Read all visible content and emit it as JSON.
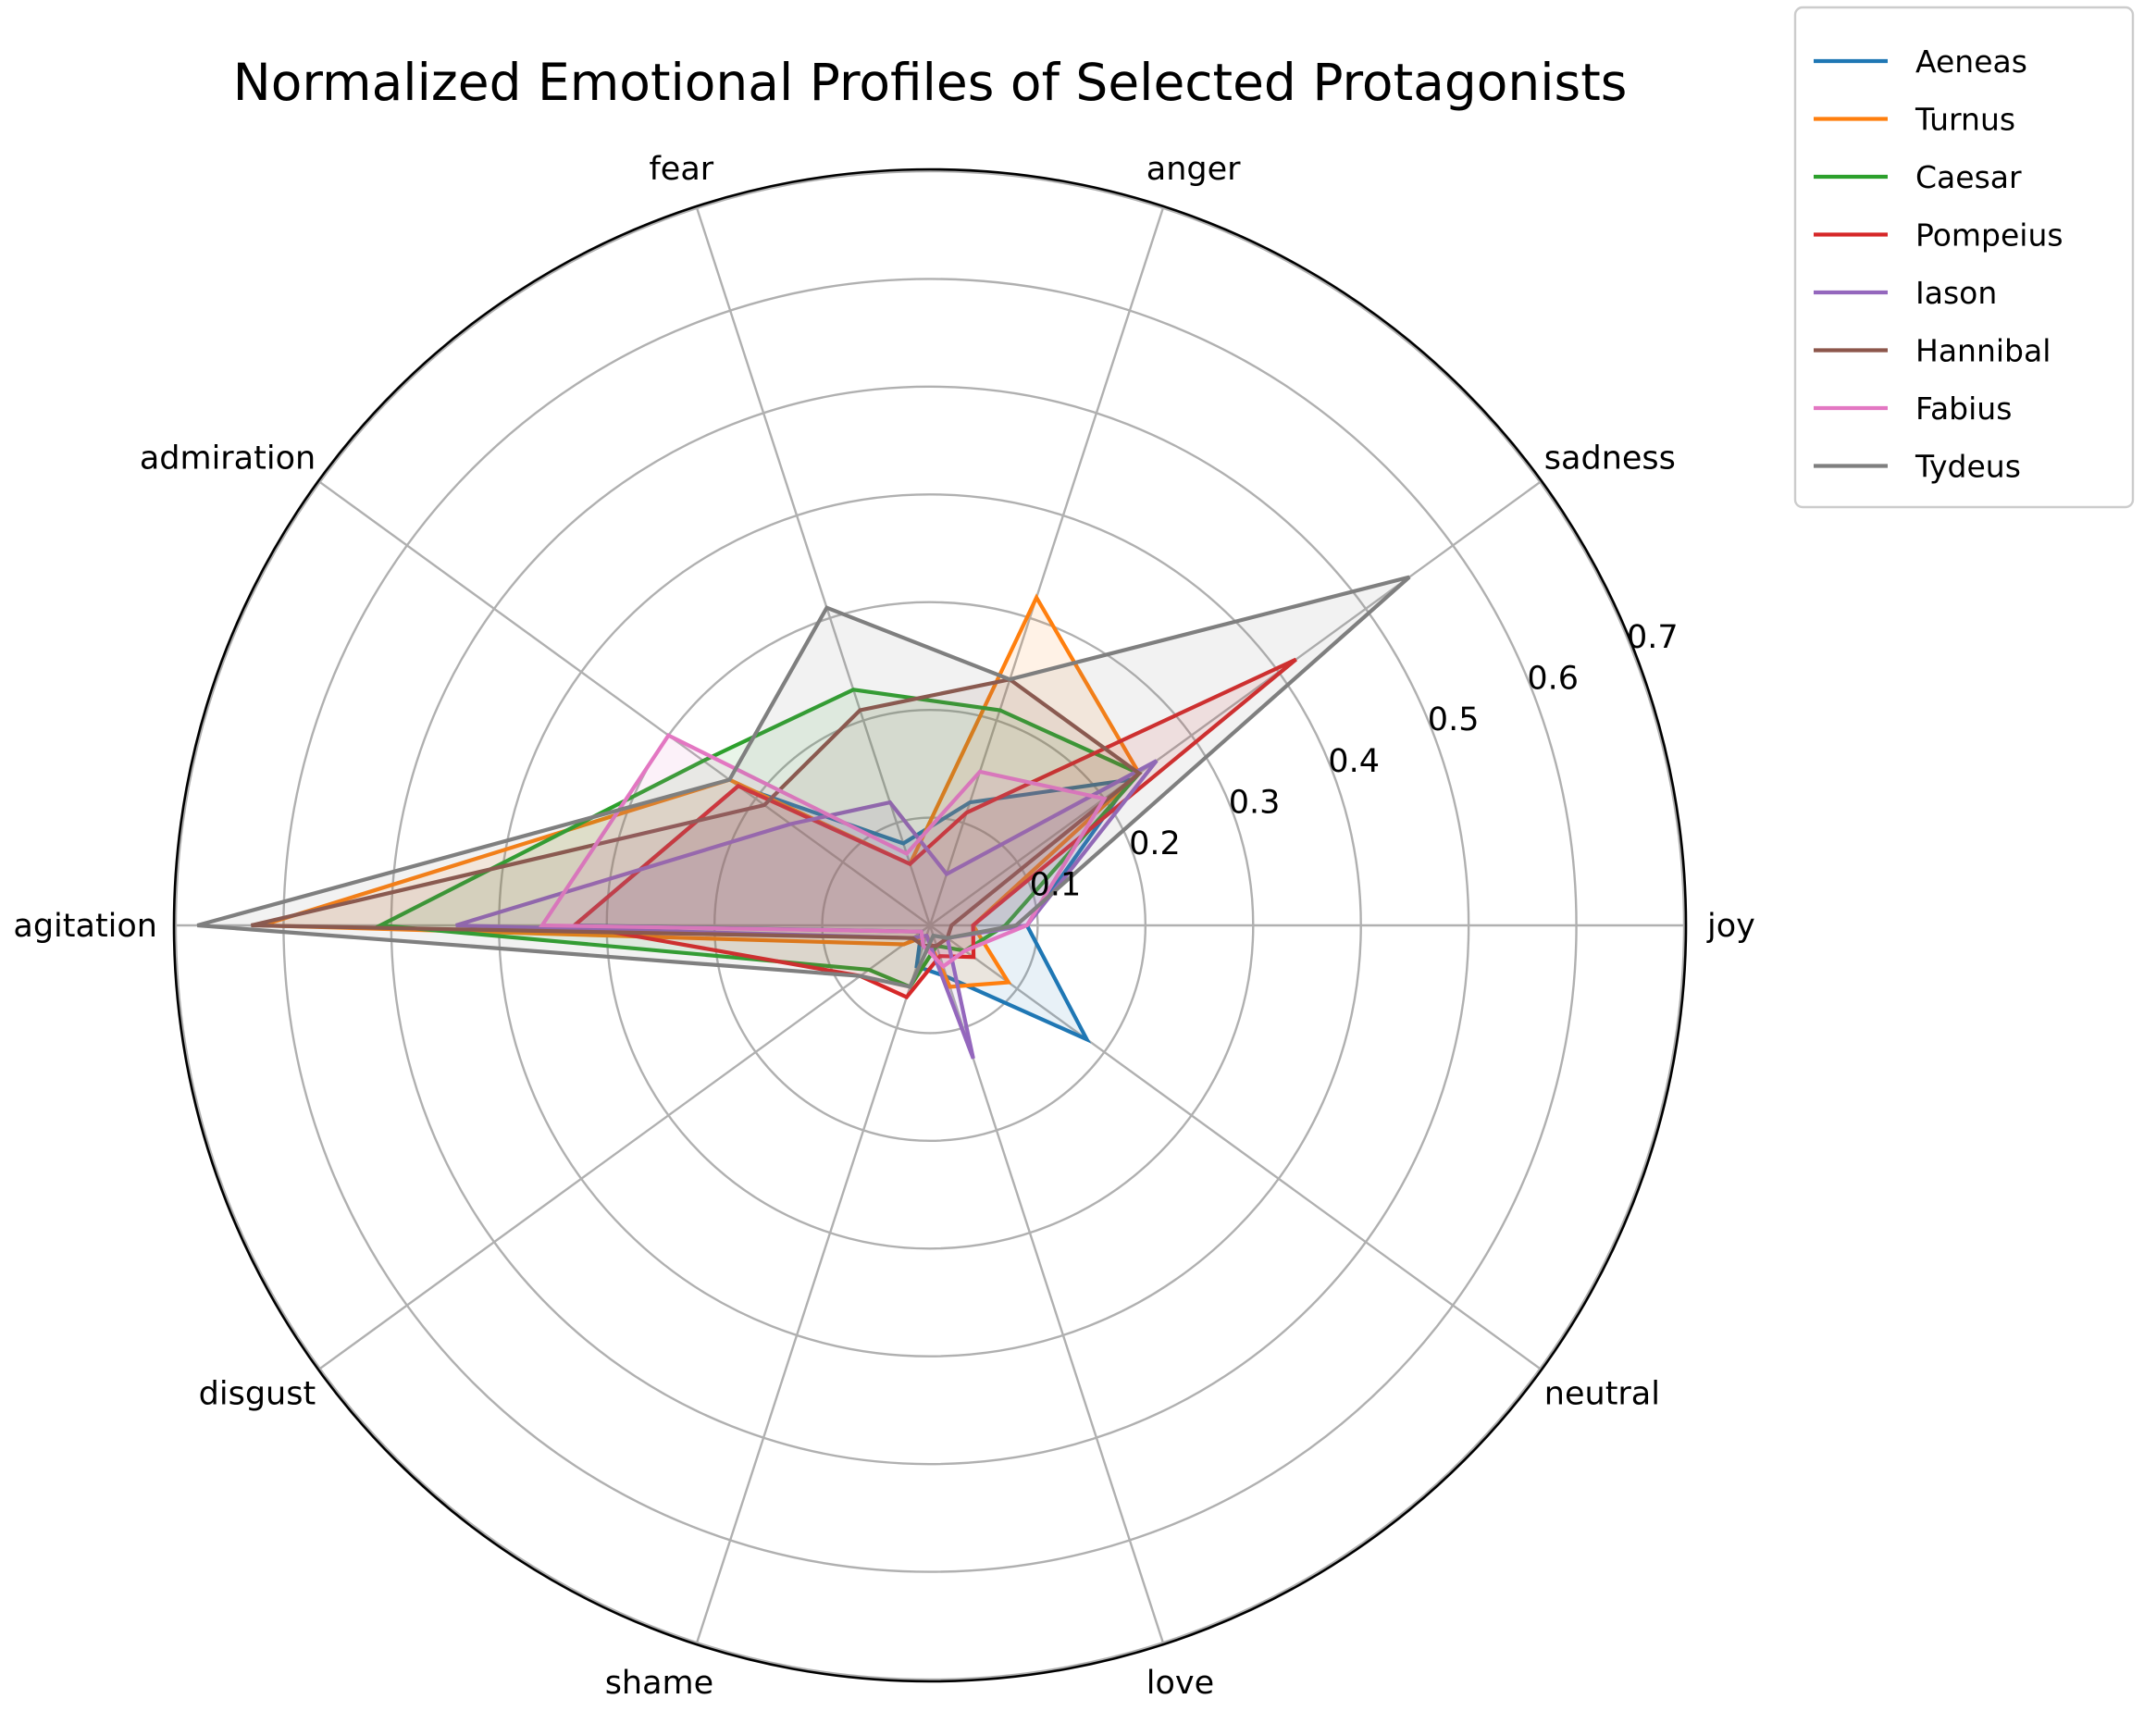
{
  "chart_data": {
    "type": "radar",
    "title": "Normalized Emotional Profiles of Selected Protagonists",
    "axes": [
      "joy",
      "sadness",
      "anger",
      "fear",
      "admiration",
      "agitation",
      "disgust",
      "shame",
      "love",
      "neutral"
    ],
    "rlim": [
      0,
      0.7
    ],
    "rticks": [
      0.1,
      0.2,
      0.3,
      0.4,
      0.5,
      0.6,
      0.7
    ],
    "rtick_labels": [
      "0.1",
      "0.2",
      "0.3",
      "0.4",
      "0.5",
      "0.6",
      "0.7"
    ],
    "grid": true,
    "legend": "upper-right-outside",
    "series": [
      {
        "name": "Aeneas",
        "color": "#1f77b4",
        "values": [
          0.09,
          0.23,
          0.12,
          0.08,
          0.22,
          0.33,
          0.01,
          0.04,
          0.05,
          0.18
        ]
      },
      {
        "name": "Turnus",
        "color": "#ff7f0e",
        "values": [
          0.04,
          0.24,
          0.32,
          0.06,
          0.23,
          0.62,
          0.03,
          0.01,
          0.06,
          0.09
        ]
      },
      {
        "name": "Caesar",
        "color": "#2ca02c",
        "values": [
          0.07,
          0.24,
          0.21,
          0.23,
          0.26,
          0.51,
          0.07,
          0.06,
          0.02,
          0.04
        ]
      },
      {
        "name": "Pompeius",
        "color": "#d62728",
        "values": [
          0.04,
          0.42,
          0.11,
          0.06,
          0.22,
          0.33,
          0.08,
          0.07,
          0.03,
          0.05
        ]
      },
      {
        "name": "Iason",
        "color": "#9467bd",
        "values": [
          0.09,
          0.26,
          0.05,
          0.12,
          0.16,
          0.44,
          0.02,
          0.01,
          0.13,
          0.02
        ]
      },
      {
        "name": "Hannibal",
        "color": "#8c564b",
        "values": [
          0.02,
          0.24,
          0.24,
          0.21,
          0.19,
          0.63,
          0.02,
          0.02,
          0.02,
          0.02
        ]
      },
      {
        "name": "Fabius",
        "color": "#e377c2",
        "values": [
          0.09,
          0.2,
          0.15,
          0.07,
          0.3,
          0.36,
          0.01,
          0.02,
          0.04,
          0.04
        ]
      },
      {
        "name": "Tydeus",
        "color": "#7f7f7f",
        "values": [
          0.08,
          0.55,
          0.24,
          0.31,
          0.23,
          0.68,
          0.08,
          0.06,
          0.01,
          0.02
        ]
      }
    ]
  }
}
